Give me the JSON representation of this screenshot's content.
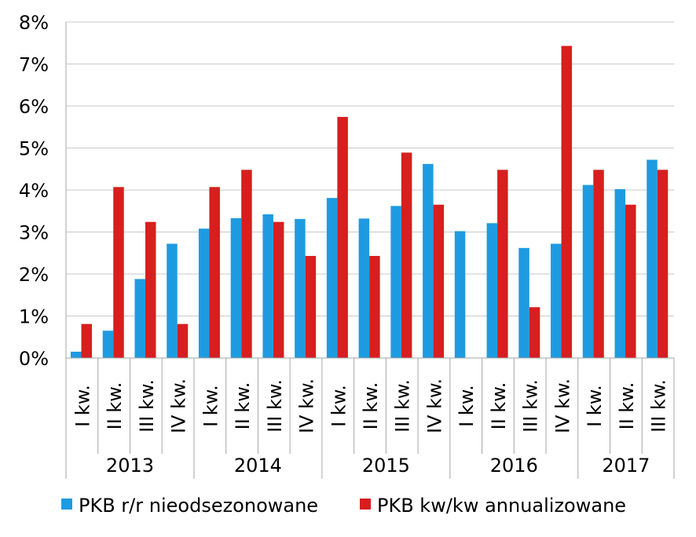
{
  "chart_data": {
    "type": "bar",
    "title": "",
    "xlabel": "",
    "ylabel": "",
    "ylim": [
      0,
      8
    ],
    "y_ticks": [
      "0%",
      "1%",
      "2%",
      "3%",
      "4%",
      "5%",
      "6%",
      "7%",
      "8%"
    ],
    "grid": true,
    "legend_position": "bottom",
    "categories": [
      "I kw.",
      "II kw.",
      "III kw.",
      "IV kw.",
      "I kw.",
      "II kw.",
      "III kw.",
      "IV kw.",
      "I kw.",
      "II kw.",
      "III kw.",
      "IV kw.",
      "I kw.",
      "II kw.",
      "III kw.",
      "IV kw.",
      "I kw.",
      "II kw.",
      "III kw."
    ],
    "groups": [
      {
        "label": "2013",
        "count": 4
      },
      {
        "label": "2014",
        "count": 4
      },
      {
        "label": "2015",
        "count": 4
      },
      {
        "label": "2016",
        "count": 4
      },
      {
        "label": "2017",
        "count": 3
      }
    ],
    "series": [
      {
        "name": "PKB r/r nieodsezonowane",
        "color": "#1E9BE0",
        "values": [
          0.15,
          0.65,
          1.88,
          2.72,
          3.08,
          3.33,
          3.42,
          3.31,
          3.81,
          3.32,
          3.62,
          4.62,
          3.02,
          3.21,
          2.62,
          2.72,
          4.12,
          4.02,
          4.72
        ]
      },
      {
        "name": "PKB kw/kw annualizowane",
        "color": "#D81E1E",
        "values": [
          0.81,
          4.07,
          3.24,
          0.81,
          4.07,
          4.48,
          3.24,
          2.43,
          5.74,
          2.43,
          4.89,
          3.65,
          null,
          4.48,
          1.21,
          7.43,
          4.48,
          3.65,
          4.48
        ]
      }
    ]
  }
}
